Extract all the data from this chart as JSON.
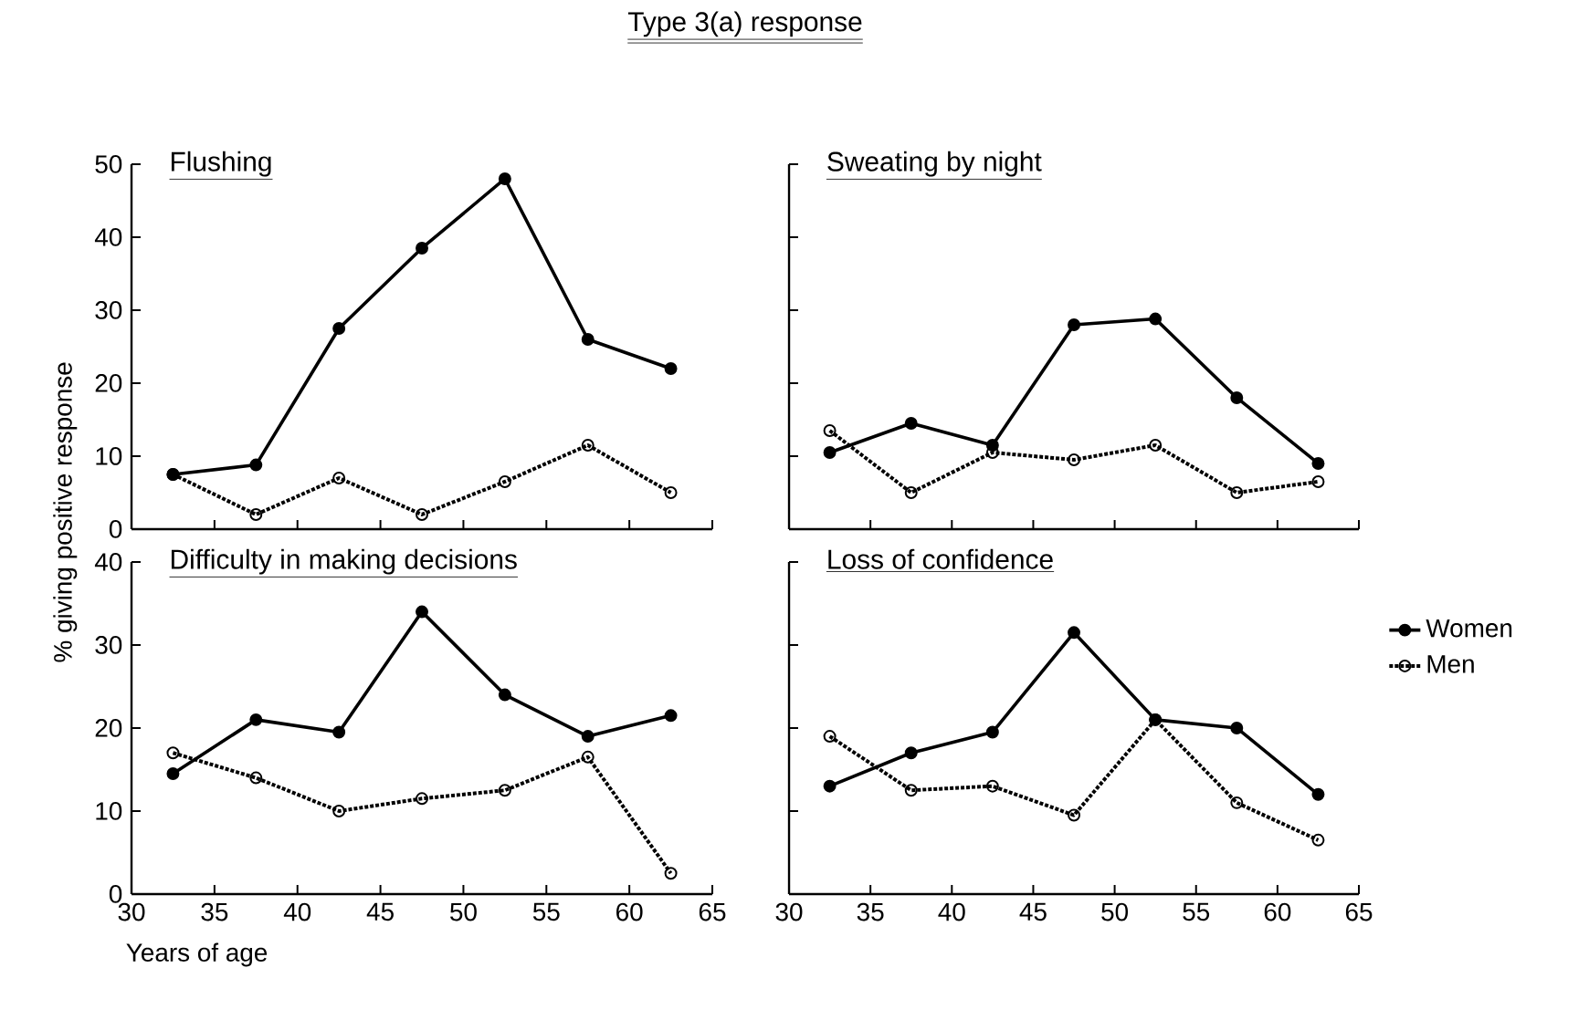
{
  "chart_data": [
    {
      "type": "line",
      "title": "Flushing",
      "annotations": [
        "Type 3(a) response"
      ],
      "x": [
        32.5,
        37.5,
        42.5,
        47.5,
        52.5,
        57.5,
        62.5
      ],
      "xlim": [
        30,
        65
      ],
      "xticks": [
        30,
        35,
        40,
        45,
        50,
        55,
        60,
        65
      ],
      "ylim": [
        0,
        50
      ],
      "yticks": [
        0,
        10,
        20,
        30,
        40,
        50
      ],
      "tick_labels": "y",
      "grid": false,
      "legend": false,
      "series": [
        {
          "color": "#000000",
          "marker": "circle",
          "line_style": "solid",
          "values": [
            7.5,
            8.8,
            27.5,
            38.5,
            48,
            26,
            22
          ]
        },
        {
          "color": "#000000",
          "marker": "circle",
          "line_style": "dotted",
          "values": [
            7.5,
            2,
            7,
            2,
            6.5,
            11.5,
            5
          ]
        }
      ]
    },
    {
      "type": "line",
      "title": "Sweating by night",
      "x": [
        32.5,
        37.5,
        42.5,
        47.5,
        52.5,
        57.5,
        62.5
      ],
      "xlim": [
        30,
        65
      ],
      "xticks": [
        30,
        35,
        40,
        45,
        50,
        55,
        60,
        65
      ],
      "ylim": [
        0,
        50
      ],
      "yticks": [
        0,
        10,
        20,
        30,
        40,
        50
      ],
      "tick_labels": false,
      "grid": false,
      "legend": false,
      "series": [
        {
          "color": "#000000",
          "marker": "circle",
          "line_style": "solid",
          "values": [
            10.5,
            14.5,
            11.5,
            28,
            28.8,
            18,
            9
          ]
        },
        {
          "color": "#000000",
          "marker": "circle",
          "line_style": "dotted",
          "values": [
            13.5,
            5,
            10.5,
            9.5,
            11.5,
            5,
            6.5
          ]
        }
      ]
    },
    {
      "type": "line",
      "title": "Difficulty in making decisions",
      "xlabel": "Years of age",
      "ylabel": "% giving positive response",
      "x": [
        32.5,
        37.5,
        42.5,
        47.5,
        52.5,
        57.5,
        62.5
      ],
      "xlim": [
        30,
        65
      ],
      "xticks": [
        30,
        35,
        40,
        45,
        50,
        55,
        60,
        65
      ],
      "ylim": [
        0,
        40
      ],
      "yticks": [
        0,
        10,
        20,
        30,
        40
      ],
      "grid": false,
      "legend": false,
      "series": [
        {
          "color": "#000000",
          "marker": "circle",
          "line_style": "solid",
          "values": [
            14.5,
            21,
            19.5,
            34,
            24,
            19,
            21.5
          ]
        },
        {
          "color": "#000000",
          "marker": "circle",
          "line_style": "dotted",
          "values": [
            17,
            14,
            10,
            11.5,
            12.5,
            16.5,
            2.5
          ]
        }
      ]
    },
    {
      "type": "line",
      "title": "Loss of confidence",
      "x": [
        32.5,
        37.5,
        42.5,
        47.5,
        52.5,
        57.5,
        62.5
      ],
      "xlim": [
        30,
        65
      ],
      "xticks": [
        30,
        35,
        40,
        45,
        50,
        55,
        60,
        65
      ],
      "ylim": [
        0,
        40
      ],
      "yticks": [
        0,
        10,
        20,
        30,
        40
      ],
      "tick_labels": "x",
      "grid": false,
      "legend": "right",
      "series": [
        {
          "name": "Women",
          "color": "#000000",
          "marker": "circle",
          "line_style": "solid",
          "values": [
            13,
            17,
            19.5,
            31.5,
            21,
            20,
            12
          ]
        },
        {
          "name": "Men",
          "color": "#000000",
          "marker": "circle",
          "line_style": "dotted",
          "values": [
            19,
            12.5,
            13,
            9.5,
            21,
            11,
            6.5
          ]
        }
      ]
    }
  ]
}
